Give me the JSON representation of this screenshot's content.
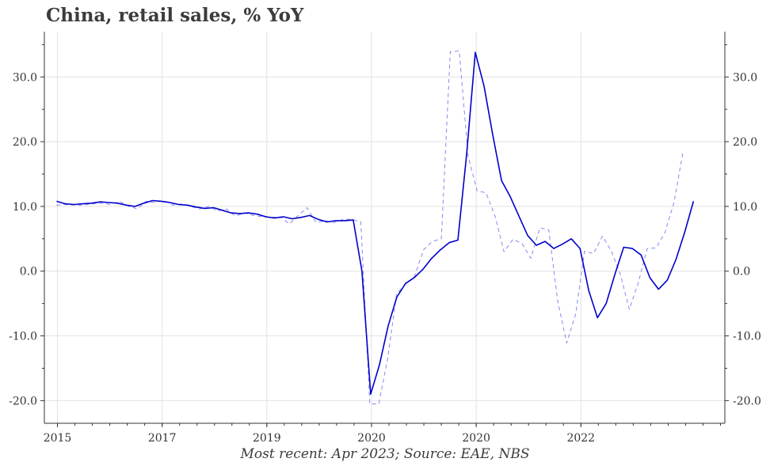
{
  "title": "China, retail sales, % YoY",
  "caption": "Most recent: Apr 2023; Source: EAE, NBS",
  "chart_data": {
    "type": "line",
    "title": "China, retail sales, % YoY",
    "xlabel": "",
    "ylabel": "",
    "x_ticks": [
      "2015",
      "2017",
      "2019",
      "2020",
      "2020",
      "2022"
    ],
    "x_tick_labels": [
      "2015",
      "2017",
      "2019",
      "2020",
      "2020",
      "2022"
    ],
    "y_ticks": [
      -20,
      -10,
      0,
      10,
      20,
      30
    ],
    "y_tick_labels": [
      "-20.0",
      "-10.0",
      "0.0",
      "10.0",
      "20.0",
      "30.0"
    ],
    "ylim": [
      -23.5,
      37
    ],
    "grid": true,
    "series": [
      {
        "style": "solid",
        "color": "#0000cc",
        "points": [
          [
            "2015-02",
            10.8
          ],
          [
            "2015-04",
            10.4
          ],
          [
            "2015-06",
            10.3
          ],
          [
            "2015-08",
            10.4
          ],
          [
            "2015-10",
            10.5
          ],
          [
            "2015-12",
            10.7
          ],
          [
            "2016-02",
            10.6
          ],
          [
            "2016-04",
            10.5
          ],
          [
            "2016-06",
            10.2
          ],
          [
            "2016-08",
            10.0
          ],
          [
            "2016-10",
            10.5
          ],
          [
            "2016-12",
            10.9
          ],
          [
            "2017-02",
            10.8
          ],
          [
            "2017-04",
            10.6
          ],
          [
            "2017-06",
            10.3
          ],
          [
            "2017-08",
            10.2
          ],
          [
            "2017-10",
            9.9
          ],
          [
            "2017-12",
            9.7
          ],
          [
            "2018-02",
            9.8
          ],
          [
            "2018-04",
            9.4
          ],
          [
            "2018-06",
            9.0
          ],
          [
            "2018-08",
            8.9
          ],
          [
            "2018-10",
            9.0
          ],
          [
            "2018-12",
            8.8
          ],
          [
            "2019-02",
            8.4
          ],
          [
            "2019-04",
            8.2
          ],
          [
            "2019-06",
            8.4
          ],
          [
            "2019-08",
            8.1
          ],
          [
            "2019-10",
            8.3
          ],
          [
            "2019-12",
            8.6
          ],
          [
            "2020-02",
            8.0
          ],
          [
            "2020-04",
            7.6
          ],
          [
            "2020-06",
            7.8
          ],
          [
            "2020-08",
            7.8
          ],
          [
            "2020-10",
            7.9
          ],
          [
            "2020-12",
            0.0
          ],
          [
            "2021-02",
            -19.0
          ],
          [
            "2021-04",
            -14.5
          ],
          [
            "2021-06",
            -8.5
          ],
          [
            "2021-08",
            -4.0
          ],
          [
            "2021-10",
            -1.9
          ],
          [
            "2021-12",
            -1.0
          ],
          [
            "2022-02",
            0.3
          ],
          [
            "2022-04",
            2.0
          ],
          [
            "2022-06",
            3.3
          ],
          [
            "2022-08",
            4.4
          ],
          [
            "2022-10",
            4.8
          ],
          [
            "2022-12",
            18.0
          ],
          [
            "2023-02",
            33.8
          ],
          [
            "2023-04",
            28.6
          ],
          [
            "2023-06",
            21.0
          ],
          [
            "2023-08",
            14.0
          ],
          [
            "2023-10",
            11.5
          ],
          [
            "2023-12",
            8.5
          ],
          [
            "2024-02",
            5.5
          ],
          [
            "2024-04",
            4.0
          ],
          [
            "2024-06",
            4.6
          ],
          [
            "2024-08",
            3.5
          ],
          [
            "2024-10",
            4.2
          ],
          [
            "2024-12",
            5.0
          ],
          [
            "2025-02",
            3.5
          ],
          [
            "2025-04",
            -3.0
          ],
          [
            "2025-06",
            -7.2
          ],
          [
            "2025-08",
            -5.0
          ],
          [
            "2025-10",
            -0.5
          ],
          [
            "2025-12",
            3.7
          ],
          [
            "2026-02",
            3.5
          ],
          [
            "2026-04",
            2.5
          ],
          [
            "2026-06",
            -1.0
          ],
          [
            "2026-08",
            -2.8
          ],
          [
            "2026-10",
            -1.4
          ],
          [
            "2026-12",
            1.8
          ],
          [
            "2027-02",
            6.0
          ],
          [
            "2027-04",
            10.8
          ]
        ]
      },
      {
        "style": "dashed",
        "color": "#8888ee",
        "points": [
          [
            "2015-02",
            10.2
          ],
          [
            "2015-04",
            10.3
          ],
          [
            "2015-06",
            10.2
          ],
          [
            "2015-08",
            10.2
          ],
          [
            "2015-10",
            10.4
          ],
          [
            "2015-12",
            10.5
          ],
          [
            "2016-02",
            10.3
          ],
          [
            "2016-04",
            10.8
          ],
          [
            "2016-06",
            10.1
          ],
          [
            "2016-08",
            9.6
          ],
          [
            "2016-10",
            10.8
          ],
          [
            "2016-12",
            10.6
          ],
          [
            "2017-02",
            10.9
          ],
          [
            "2017-04",
            10.2
          ],
          [
            "2017-06",
            10.4
          ],
          [
            "2017-08",
            10.0
          ],
          [
            "2017-10",
            9.6
          ],
          [
            "2017-12",
            10.0
          ],
          [
            "2018-02",
            9.3
          ],
          [
            "2018-04",
            9.6
          ],
          [
            "2018-06",
            8.5
          ],
          [
            "2018-08",
            9.0
          ],
          [
            "2018-10",
            8.6
          ],
          [
            "2018-12",
            8.4
          ],
          [
            "2019-02",
            8.3
          ],
          [
            "2019-04",
            8.4
          ],
          [
            "2019-06",
            7.3
          ],
          [
            "2019-08",
            8.6
          ],
          [
            "2019-10",
            9.8
          ],
          [
            "2019-12",
            7.5
          ],
          [
            "2020-02",
            7.8
          ],
          [
            "2020-04",
            7.5
          ],
          [
            "2020-06",
            8.0
          ],
          [
            "2020-08",
            8.0
          ],
          [
            "2020-10",
            7.6
          ],
          [
            "2020-12",
            -20.5
          ],
          [
            "2021-02",
            -20.5
          ],
          [
            "2021-04",
            -13.5
          ],
          [
            "2021-06",
            -3.5
          ],
          [
            "2021-08",
            -2.0
          ],
          [
            "2021-10",
            -0.8
          ],
          [
            "2021-12",
            3.3
          ],
          [
            "2022-02",
            4.6
          ],
          [
            "2022-04",
            5.0
          ],
          [
            "2022-06",
            33.9
          ],
          [
            "2022-08",
            34.0
          ],
          [
            "2022-10",
            17.7
          ],
          [
            "2022-12",
            12.4
          ],
          [
            "2023-02",
            12.1
          ],
          [
            "2023-04",
            8.5
          ],
          [
            "2023-06",
            3.0
          ],
          [
            "2023-08",
            4.9
          ],
          [
            "2023-10",
            4.3
          ],
          [
            "2023-12",
            2.0
          ],
          [
            "2024-02",
            6.7
          ],
          [
            "2024-04",
            6.4
          ],
          [
            "2024-06",
            -4.6
          ],
          [
            "2024-08",
            -11.1
          ],
          [
            "2024-10",
            -6.7
          ],
          [
            "2024-12",
            3.1
          ],
          [
            "2025-02",
            2.7
          ],
          [
            "2025-04",
            5.4
          ],
          [
            "2025-06",
            3.1
          ],
          [
            "2025-08",
            -0.5
          ],
          [
            "2025-10",
            -5.9
          ],
          [
            "2025-12",
            -1.8
          ],
          [
            "2026-02",
            3.5
          ],
          [
            "2026-04",
            3.6
          ],
          [
            "2026-06",
            6.0
          ],
          [
            "2026-08",
            10.6
          ],
          [
            "2026-10",
            18.4
          ]
        ]
      }
    ]
  }
}
